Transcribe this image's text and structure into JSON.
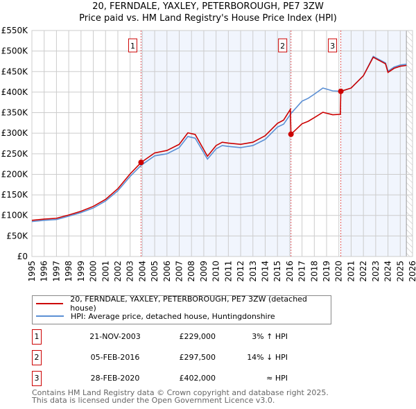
{
  "chart_data": {
    "type": "line",
    "title": "20, FERNDALE, YAXLEY, PETERBOROUGH, PE7 3ZW",
    "subtitle": "Price paid vs. HM Land Registry's House Price Index (HPI)",
    "xlim": [
      1995,
      2026
    ],
    "ylim": [
      0,
      550000
    ],
    "xticks": [
      "1995",
      "1996",
      "1997",
      "1998",
      "1999",
      "2000",
      "2001",
      "2002",
      "2003",
      "2004",
      "2005",
      "2006",
      "2007",
      "2008",
      "2009",
      "2010",
      "2011",
      "2012",
      "2013",
      "2014",
      "2015",
      "2016",
      "2017",
      "2018",
      "2019",
      "2020",
      "2021",
      "2022",
      "2023",
      "2024",
      "2025",
      "2026"
    ],
    "yticks": [
      {
        "v": 0,
        "l": "£0"
      },
      {
        "v": 50000,
        "l": "£50K"
      },
      {
        "v": 100000,
        "l": "£100K"
      },
      {
        "v": 150000,
        "l": "£150K"
      },
      {
        "v": 200000,
        "l": "£200K"
      },
      {
        "v": 250000,
        "l": "£250K"
      },
      {
        "v": 300000,
        "l": "£300K"
      },
      {
        "v": 350000,
        "l": "£350K"
      },
      {
        "v": 400000,
        "l": "£400K"
      },
      {
        "v": 450000,
        "l": "£450K"
      },
      {
        "v": 500000,
        "l": "£500K"
      },
      {
        "v": 550000,
        "l": "£550K"
      }
    ],
    "grid": true,
    "series": [
      {
        "name": "20, FERNDALE, YAXLEY, PETERBOROUGH, PE7 3ZW (detached house)",
        "color": "#cc0000",
        "points": [
          [
            1995,
            88000
          ],
          [
            1996,
            91000
          ],
          [
            1997,
            93000
          ],
          [
            1998,
            101000
          ],
          [
            1999,
            110000
          ],
          [
            2000,
            122000
          ],
          [
            2001,
            139000
          ],
          [
            2002,
            165000
          ],
          [
            2003,
            201000
          ],
          [
            2003.9,
            229000
          ],
          [
            2005,
            252000
          ],
          [
            2006,
            258000
          ],
          [
            2007,
            273000
          ],
          [
            2007.7,
            301000
          ],
          [
            2008.3,
            297000
          ],
          [
            2009.3,
            244000
          ],
          [
            2010,
            270000
          ],
          [
            2010.5,
            278000
          ],
          [
            2011,
            276000
          ],
          [
            2012,
            273000
          ],
          [
            2013,
            278000
          ],
          [
            2014,
            294000
          ],
          [
            2015,
            324000
          ],
          [
            2015.5,
            332000
          ],
          [
            2016.05,
            358000
          ],
          [
            2016.1,
            297500
          ],
          [
            2017,
            323000
          ],
          [
            2017.5,
            329000
          ],
          [
            2018,
            338000
          ],
          [
            2018.7,
            351000
          ],
          [
            2019.5,
            345000
          ],
          [
            2020.12,
            346000
          ],
          [
            2020.16,
            402000
          ],
          [
            2021,
            410000
          ],
          [
            2022,
            440000
          ],
          [
            2022.8,
            485000
          ],
          [
            2023.3,
            477000
          ],
          [
            2023.8,
            469000
          ],
          [
            2024,
            448000
          ],
          [
            2024.5,
            458000
          ],
          [
            2025,
            463000
          ],
          [
            2025.5,
            465000
          ]
        ]
      },
      {
        "name": "HPI: Average price, detached house, Huntingdonshire",
        "color": "#5b8fd4",
        "points": [
          [
            1995,
            85000
          ],
          [
            1996,
            88000
          ],
          [
            1997,
            90000
          ],
          [
            1998,
            98000
          ],
          [
            1999,
            107000
          ],
          [
            2000,
            118000
          ],
          [
            2001,
            135000
          ],
          [
            2002,
            160000
          ],
          [
            2003,
            195000
          ],
          [
            2003.9,
            222000
          ],
          [
            2005,
            245000
          ],
          [
            2006,
            250000
          ],
          [
            2007,
            265000
          ],
          [
            2007.7,
            292000
          ],
          [
            2008.3,
            288000
          ],
          [
            2009.3,
            237000
          ],
          [
            2010,
            262000
          ],
          [
            2010.5,
            270000
          ],
          [
            2011,
            268000
          ],
          [
            2012,
            265000
          ],
          [
            2013,
            270000
          ],
          [
            2014,
            285000
          ],
          [
            2015,
            315000
          ],
          [
            2015.5,
            322000
          ],
          [
            2016.1,
            348000
          ],
          [
            2017,
            378000
          ],
          [
            2017.5,
            385000
          ],
          [
            2018,
            395000
          ],
          [
            2018.7,
            410000
          ],
          [
            2019.5,
            403000
          ],
          [
            2020.2,
            402000
          ],
          [
            2021,
            410000
          ],
          [
            2022,
            440000
          ],
          [
            2022.8,
            487000
          ],
          [
            2023.3,
            479000
          ],
          [
            2023.8,
            471000
          ],
          [
            2024,
            451000
          ],
          [
            2024.5,
            461000
          ],
          [
            2025,
            466000
          ],
          [
            2025.5,
            468000
          ]
        ]
      }
    ],
    "sales": [
      {
        "label": "1",
        "x": 2003.89,
        "y": 229000
      },
      {
        "label": "2",
        "x": 2016.1,
        "y": 297500
      },
      {
        "label": "3",
        "x": 2020.16,
        "y": 402000
      }
    ],
    "shaded": [
      [
        2003.89,
        2016.1
      ],
      [
        2020.16,
        2025.5
      ]
    ],
    "data_end": 2025.5
  },
  "legend": {
    "property": "20, FERNDALE, YAXLEY, PETERBOROUGH, PE7 3ZW (detached house)",
    "hpi": "HPI: Average price, detached house, Huntingdonshire"
  },
  "transactions": [
    {
      "num": "1",
      "date": "21-NOV-2003",
      "price": "£229,000",
      "rel": "3% ↑ HPI"
    },
    {
      "num": "2",
      "date": "05-FEB-2016",
      "price": "£297,500",
      "rel": "14% ↓ HPI"
    },
    {
      "num": "3",
      "date": "28-FEB-2020",
      "price": "£402,000",
      "rel": "≈ HPI"
    }
  ],
  "footer": {
    "line1": "Contains HM Land Registry data © Crown copyright and database right 2025.",
    "line2": "This data is licensed under the Open Government Licence v3.0."
  }
}
